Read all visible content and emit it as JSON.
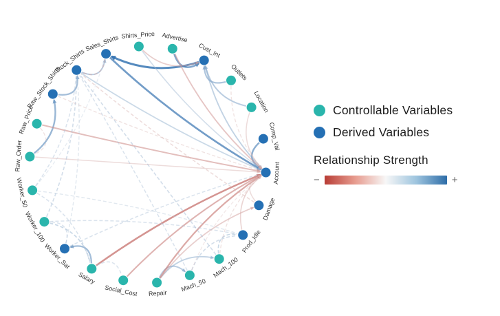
{
  "legend": {
    "controllable_label": "Controllable Variables",
    "derived_label": "Derived Variables",
    "strength_title": "Relationship Strength",
    "minus": "−",
    "plus": "+",
    "controllable_color": "#2ab5ac",
    "derived_color": "#2570b4",
    "colorbar_colors": [
      "#b83d36",
      "#e79c8f",
      "#f7f7f7",
      "#9dc4de",
      "#2e6da8"
    ]
  },
  "chart_data": {
    "type": "network",
    "layout": "circular",
    "legend_position": "right",
    "nodes": [
      {
        "id": "Advertise",
        "type": "controllable"
      },
      {
        "id": "Cust_Int",
        "type": "derived"
      },
      {
        "id": "Outlets",
        "type": "controllable"
      },
      {
        "id": "Location",
        "type": "controllable"
      },
      {
        "id": "Comp_Val",
        "type": "derived"
      },
      {
        "id": "Account",
        "type": "derived"
      },
      {
        "id": "Damage",
        "type": "derived"
      },
      {
        "id": "Prod_Idle",
        "type": "derived"
      },
      {
        "id": "Mach_100",
        "type": "controllable"
      },
      {
        "id": "Mach_50",
        "type": "controllable"
      },
      {
        "id": "Repair",
        "type": "controllable"
      },
      {
        "id": "Social_Cost",
        "type": "controllable"
      },
      {
        "id": "Salary",
        "type": "controllable"
      },
      {
        "id": "Worker_Sat",
        "type": "derived"
      },
      {
        "id": "Worker_100",
        "type": "controllable"
      },
      {
        "id": "Worker_50",
        "type": "controllable"
      },
      {
        "id": "Raw_Order",
        "type": "controllable"
      },
      {
        "id": "Raw_Price",
        "type": "controllable"
      },
      {
        "id": "Raw_Stock_Shirts",
        "type": "derived"
      },
      {
        "id": "Stock_Shirts",
        "type": "derived"
      },
      {
        "id": "Sales_Shirts",
        "type": "derived"
      },
      {
        "id": "Shirts_Price",
        "type": "controllable"
      }
    ],
    "edges": [
      {
        "source": "Advertise",
        "target": "Cust_Int",
        "strength": 0.75,
        "style": "solid"
      },
      {
        "source": "Outlets",
        "target": "Cust_Int",
        "strength": 0.55,
        "style": "solid"
      },
      {
        "source": "Location",
        "target": "Cust_Int",
        "strength": 0.5,
        "style": "solid"
      },
      {
        "source": "Cust_Int",
        "target": "Sales_Shirts",
        "strength": 0.9,
        "style": "solid"
      },
      {
        "source": "Stock_Shirts",
        "target": "Sales_Shirts",
        "strength": 0.5,
        "style": "solid"
      },
      {
        "source": "Raw_Order",
        "target": "Raw_Stock_Shirts",
        "strength": 0.65,
        "style": "solid"
      },
      {
        "source": "Raw_Stock_Shirts",
        "target": "Stock_Shirts",
        "strength": 0.6,
        "style": "solid"
      },
      {
        "source": "Sales_Shirts",
        "target": "Account",
        "strength": 0.8,
        "style": "solid"
      },
      {
        "source": "Comp_Val",
        "target": "Account",
        "strength": 0.7,
        "style": "solid"
      },
      {
        "source": "Cust_Int",
        "target": "Account",
        "strength": 0.45,
        "style": "solid"
      },
      {
        "source": "Stock_Shirts",
        "target": "Account",
        "strength": 0.4,
        "style": "solid"
      },
      {
        "source": "Shirts_Price",
        "target": "Account",
        "strength": 0.35,
        "style": "solid"
      },
      {
        "source": "Salary",
        "target": "Worker_Sat",
        "strength": 0.6,
        "style": "solid"
      },
      {
        "source": "Repair",
        "target": "Mach_50",
        "strength": 0.5,
        "style": "solid"
      },
      {
        "source": "Repair",
        "target": "Mach_100",
        "strength": 0.45,
        "style": "solid"
      },
      {
        "source": "Salary",
        "target": "Account",
        "strength": -0.7,
        "style": "solid"
      },
      {
        "source": "Repair",
        "target": "Account",
        "strength": -0.6,
        "style": "solid"
      },
      {
        "source": "Social_Cost",
        "target": "Account",
        "strength": -0.55,
        "style": "solid"
      },
      {
        "source": "Advertise",
        "target": "Account",
        "strength": -0.45,
        "style": "solid"
      },
      {
        "source": "Raw_Price",
        "target": "Account",
        "strength": -0.5,
        "style": "solid"
      },
      {
        "source": "Raw_Order",
        "target": "Account",
        "strength": -0.3,
        "style": "solid"
      },
      {
        "source": "Shirts_Price",
        "target": "Cust_Int",
        "strength": -0.4,
        "style": "solid"
      },
      {
        "source": "Location",
        "target": "Account",
        "strength": -0.3,
        "style": "solid"
      },
      {
        "source": "Prod_Idle",
        "target": "Account",
        "strength": -0.35,
        "style": "solid"
      },
      {
        "source": "Damage",
        "target": "Account",
        "strength": -0.3,
        "style": "solid"
      },
      {
        "source": "Repair",
        "target": "Damage",
        "strength": -0.4,
        "style": "solid"
      },
      {
        "source": "Mach_50",
        "target": "Prod_Idle",
        "strength": 0.35,
        "style": "dashed"
      },
      {
        "source": "Mach_100",
        "target": "Prod_Idle",
        "strength": 0.4,
        "style": "dashed"
      },
      {
        "source": "Worker_50",
        "target": "Prod_Idle",
        "strength": 0.25,
        "style": "dashed"
      },
      {
        "source": "Worker_100",
        "target": "Prod_Idle",
        "strength": 0.3,
        "style": "dashed"
      },
      {
        "source": "Worker_50",
        "target": "Stock_Shirts",
        "strength": 0.3,
        "style": "dashed"
      },
      {
        "source": "Worker_100",
        "target": "Stock_Shirts",
        "strength": 0.35,
        "style": "dashed"
      },
      {
        "source": "Mach_50",
        "target": "Stock_Shirts",
        "strength": 0.3,
        "style": "dashed"
      },
      {
        "source": "Mach_100",
        "target": "Stock_Shirts",
        "strength": 0.35,
        "style": "dashed"
      },
      {
        "source": "Worker_Sat",
        "target": "Stock_Shirts",
        "strength": 0.25,
        "style": "dashed"
      },
      {
        "source": "Worker_50",
        "target": "Salary",
        "strength": 0.3,
        "style": "dashed"
      },
      {
        "source": "Worker_100",
        "target": "Salary",
        "strength": 0.4,
        "style": "dashed"
      },
      {
        "source": "Worker_Sat",
        "target": "Worker_100",
        "strength": 0.3,
        "style": "dashed"
      },
      {
        "source": "Raw_Price",
        "target": "Raw_Order",
        "strength": -0.25,
        "style": "dashed"
      },
      {
        "source": "Damage",
        "target": "Stock_Shirts",
        "strength": -0.3,
        "style": "dashed"
      },
      {
        "source": "Mach_100",
        "target": "Account",
        "strength": -0.25,
        "style": "dashed"
      },
      {
        "source": "Mach_50",
        "target": "Account",
        "strength": -0.2,
        "style": "dashed"
      },
      {
        "source": "Outlets",
        "target": "Account",
        "strength": -0.25,
        "style": "dashed"
      },
      {
        "source": "Raw_Stock_Shirts",
        "target": "Account",
        "strength": -0.25,
        "style": "dashed"
      },
      {
        "source": "Sales_Shirts",
        "target": "Stock_Shirts",
        "strength": -0.35,
        "style": "dashed"
      },
      {
        "source": "Worker_Sat",
        "target": "Account",
        "strength": 0.3,
        "style": "dashed"
      },
      {
        "source": "Worker_50",
        "target": "Sales_Shirts",
        "strength": 0.2,
        "style": "dashed"
      },
      {
        "source": "Salary",
        "target": "Social_Cost",
        "strength": 0.3,
        "style": "dashed"
      }
    ]
  }
}
